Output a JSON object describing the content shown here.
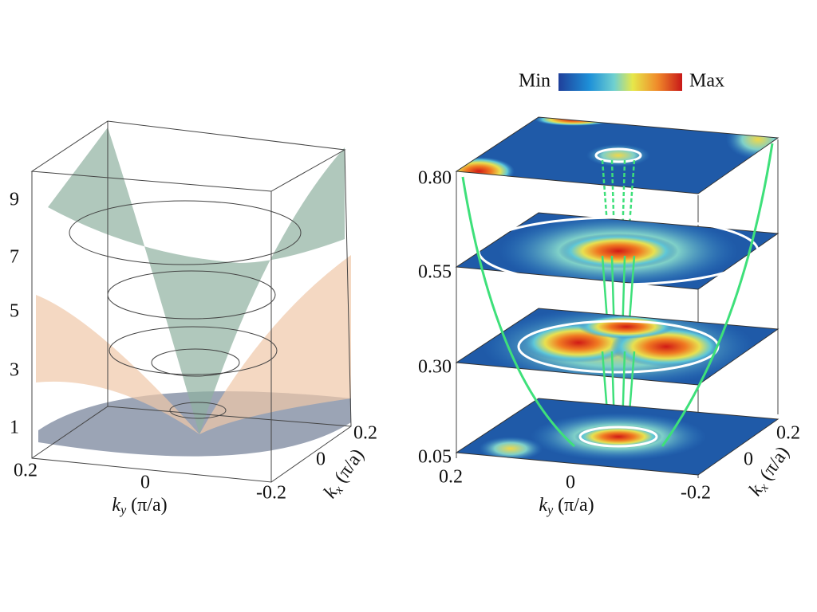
{
  "left_panel": {
    "z_ticks": [
      "9",
      "7",
      "5",
      "3",
      "1"
    ],
    "ky_ticks": [
      "0.2",
      "0"
    ],
    "kx_ticks": [
      "-0.2",
      "0",
      "0.2"
    ],
    "ky_label": {
      "symbol": "k",
      "sub": "y",
      "unit": "(π/a)"
    },
    "kx_label": {
      "symbol": "k",
      "sub": "x",
      "unit": "(π/a)"
    }
  },
  "right_panel": {
    "colorbar": {
      "min": "Min",
      "max": "Max"
    },
    "z_ticks": [
      "0.80",
      "0.55",
      "0.30",
      "0.05"
    ],
    "ky_ticks": [
      "0.2",
      "0"
    ],
    "kx_ticks": [
      "-0.2",
      "0",
      "0.2"
    ],
    "ky_label": {
      "symbol": "k",
      "sub": "y",
      "unit": "(π/a)"
    },
    "kx_label": {
      "symbol": "k",
      "sub": "x",
      "unit": "(π/a)"
    }
  }
}
